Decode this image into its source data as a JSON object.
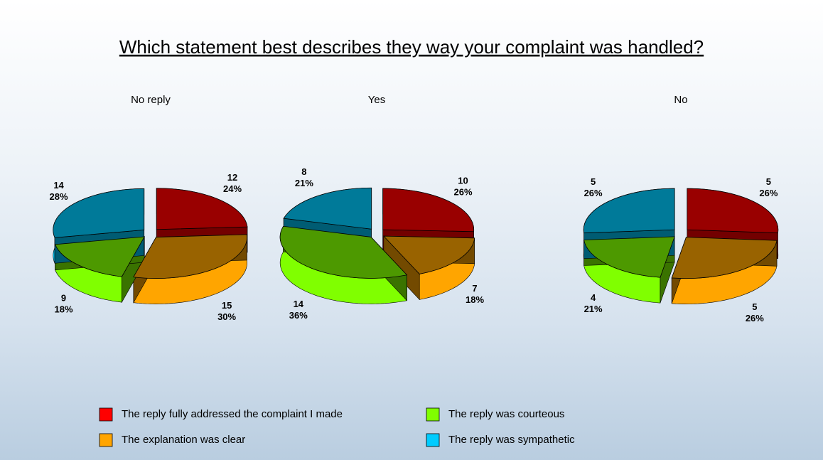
{
  "title": "Which statement best describes they way your complaint was handled?",
  "legend": {
    "categories": [
      "The reply fully addressed the complaint I made",
      "The explanation was clear",
      "The reply was courteous",
      "The reply was sympathetic"
    ],
    "colors": [
      "#ff0000",
      "#ffa500",
      "#80ff00",
      "#00ccff"
    ]
  },
  "chart_data": [
    {
      "type": "pie",
      "title": "No reply",
      "values": [
        24,
        30,
        18,
        28
      ],
      "value_labels": [
        "24%",
        "30%",
        "18%",
        "28%"
      ],
      "counts": [
        12,
        15,
        9,
        14
      ]
    },
    {
      "type": "pie",
      "title": "Yes",
      "values": [
        26,
        18,
        36,
        21
      ],
      "value_labels": [
        "26%",
        "18%",
        "36%",
        "21%"
      ],
      "counts": [
        10,
        7,
        14,
        8
      ]
    },
    {
      "type": "pie",
      "title": "No",
      "values": [
        26,
        26,
        21,
        26
      ],
      "value_labels": [
        "26%",
        "26%",
        "21%",
        "26%"
      ],
      "counts": [
        5,
        5,
        4,
        5
      ]
    }
  ]
}
